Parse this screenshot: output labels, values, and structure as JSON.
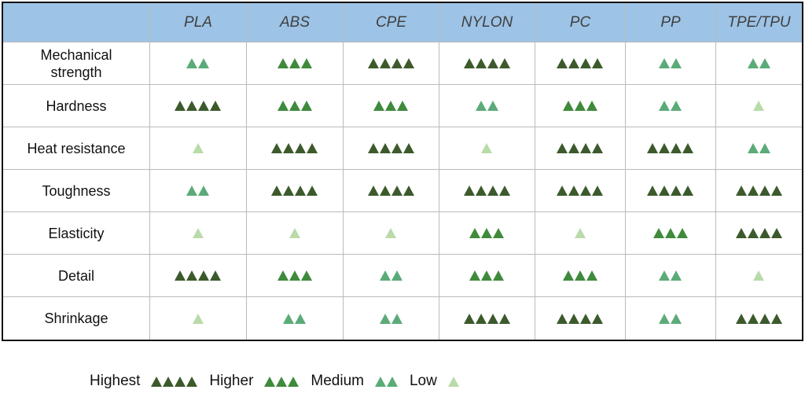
{
  "table": {
    "columns": [
      "PLA",
      "ABS",
      "CPE",
      "NYLON",
      "PC",
      "PP",
      "TPE/TPU"
    ],
    "rows": [
      {
        "label": "Mechanical strength",
        "ratings": [
          2,
          3,
          4,
          4,
          4,
          2,
          2
        ]
      },
      {
        "label": "Hardness",
        "ratings": [
          4,
          3,
          3,
          2,
          3,
          2,
          1
        ]
      },
      {
        "label": "Heat resistance",
        "ratings": [
          1,
          4,
          4,
          1,
          4,
          4,
          2
        ]
      },
      {
        "label": "Toughness",
        "ratings": [
          2,
          4,
          4,
          4,
          4,
          4,
          4
        ]
      },
      {
        "label": "Elasticity",
        "ratings": [
          1,
          1,
          1,
          3,
          1,
          3,
          4
        ]
      },
      {
        "label": "Detail",
        "ratings": [
          4,
          3,
          2,
          3,
          3,
          2,
          1
        ]
      },
      {
        "label": "Shrinkage",
        "ratings": [
          1,
          2,
          2,
          4,
          4,
          2,
          4
        ]
      }
    ],
    "level_colors": [
      "#b9dbaa",
      "#5bab78",
      "#3f8a3c",
      "#3c5a2b"
    ]
  },
  "legend": [
    {
      "label": "Highest",
      "level": 4
    },
    {
      "label": "Higher",
      "level": 3
    },
    {
      "label": "Medium",
      "level": 2
    },
    {
      "label": "Low",
      "level": 1
    }
  ]
}
